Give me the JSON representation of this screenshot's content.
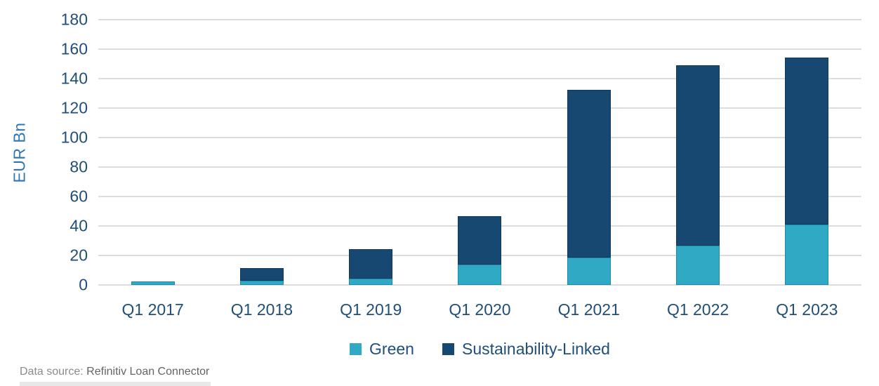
{
  "chart_data": {
    "type": "bar",
    "stacked": true,
    "title": "",
    "xlabel": "",
    "ylabel": "EUR Bn",
    "ylim": [
      0,
      180
    ],
    "yticks": [
      0,
      20,
      40,
      60,
      80,
      100,
      120,
      140,
      160,
      180
    ],
    "grid": true,
    "legend_position": "bottom",
    "categories": [
      "Q1 2017",
      "Q1 2018",
      "Q1 2019",
      "Q1 2020",
      "Q1 2021",
      "Q1 2022",
      "Q1 2023"
    ],
    "series": [
      {
        "name": "Green",
        "color": "#2fa9c4",
        "border_color": "#1d8ca8",
        "values": [
          2.5,
          3,
          4.5,
          14,
          18.5,
          26.5,
          41
        ]
      },
      {
        "name": "Sustainability-Linked",
        "color": "#174872",
        "border_color": "#12395c",
        "values": [
          0,
          8.5,
          20,
          32.5,
          114,
          122.5,
          113.5
        ]
      }
    ],
    "totals": [
      2.5,
      11.5,
      24.5,
      46.5,
      132.5,
      149,
      154.5
    ]
  },
  "colors": {
    "grid": "#dcdcdc",
    "tick_text": "#1f4e79",
    "axis_title_text": "#2e75b6"
  },
  "footer": {
    "source_label": "Data source:",
    "source_value": " Refinitiv Loan Connector"
  }
}
